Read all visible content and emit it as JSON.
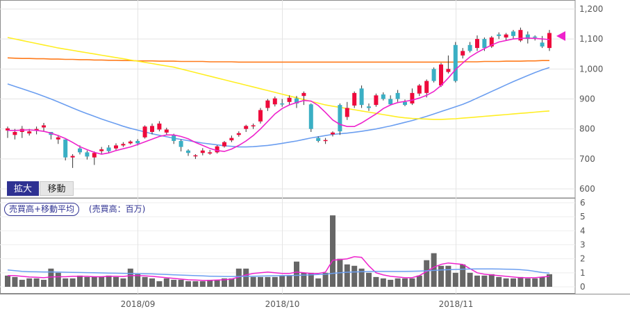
{
  "ui": {
    "zoom_button": "拡大",
    "move_button": "移動",
    "volume_legend": "売買高+移動平均",
    "volume_unit": "(売買高：百万)"
  },
  "colors": {
    "up": "#ee0a3c",
    "down": "#3aafc4",
    "ma_short": "#ee22cc",
    "ma_mid": "#6b9ef0",
    "ma_long": "#ff7a1a",
    "ma_xlong": "#ffee22",
    "volume_bar": "#666666",
    "marker": "#ee22cc"
  },
  "chart_data": [
    {
      "type": "candlestick",
      "title": "",
      "y_ticks": [
        600,
        700,
        800,
        900,
        "1,000",
        "1,100",
        "1,200"
      ],
      "ylim": [
        570,
        1230
      ],
      "x_ticks": [
        "2018/09",
        "2018/10",
        "2018/11"
      ],
      "x_tick_index": [
        18,
        38,
        62
      ],
      "candles": [
        [
          795,
          802,
          808,
          770
        ],
        [
          780,
          790,
          800,
          765
        ],
        [
          790,
          800,
          810,
          770
        ],
        [
          785,
          792,
          800,
          778
        ],
        [
          795,
          800,
          808,
          782
        ],
        [
          805,
          812,
          820,
          790
        ],
        [
          790,
          780,
          790,
          765
        ],
        [
          765,
          772,
          780,
          750
        ],
        [
          765,
          705,
          765,
          695
        ],
        [
          705,
          710,
          716,
          670
        ],
        [
          735,
          722,
          745,
          715
        ],
        [
          722,
          708,
          728,
          698
        ],
        [
          705,
          720,
          725,
          680
        ],
        [
          726,
          732,
          740,
          716
        ],
        [
          738,
          726,
          746,
          720
        ],
        [
          735,
          745,
          752,
          730
        ],
        [
          745,
          750,
          756,
          740
        ],
        [
          752,
          758,
          762,
          748
        ],
        [
          760,
          752,
          766,
          745
        ],
        [
          772,
          808,
          812,
          768
        ],
        [
          790,
          810,
          818,
          782
        ],
        [
          798,
          818,
          826,
          792
        ],
        [
          788,
          798,
          804,
          782
        ],
        [
          780,
          760,
          784,
          750
        ],
        [
          760,
          740,
          765,
          725
        ],
        [
          728,
          720,
          732,
          710
        ],
        [
          712,
          712,
          716,
          700
        ],
        [
          720,
          728,
          736,
          712
        ],
        [
          718,
          722,
          730,
          714
        ],
        [
          722,
          742,
          746,
          718
        ],
        [
          742,
          756,
          760,
          738
        ],
        [
          762,
          770,
          778,
          756
        ],
        [
          780,
          786,
          792,
          774
        ],
        [
          800,
          810,
          814,
          790
        ],
        [
          810,
          812,
          818,
          800
        ],
        [
          825,
          863,
          870,
          818
        ],
        [
          870,
          895,
          900,
          860
        ],
        [
          882,
          902,
          908,
          875
        ],
        [
          885,
          882,
          900,
          874
        ],
        [
          890,
          904,
          912,
          880
        ],
        [
          902,
          885,
          910,
          870
        ],
        [
          910,
          920,
          925,
          880
        ],
        [
          882,
          800,
          885,
          790
        ],
        [
          770,
          760,
          775,
          755
        ],
        [
          760,
          763,
          770,
          750
        ],
        [
          782,
          788,
          792,
          775
        ],
        [
          880,
          792,
          885,
          780
        ],
        [
          840,
          870,
          890,
          830
        ],
        [
          878,
          920,
          925,
          870
        ],
        [
          935,
          880,
          945,
          870
        ],
        [
          875,
          870,
          885,
          860
        ],
        [
          880,
          912,
          918,
          874
        ],
        [
          915,
          900,
          922,
          895
        ],
        [
          900,
          882,
          912,
          878
        ],
        [
          920,
          900,
          930,
          890
        ],
        [
          890,
          880,
          898,
          876
        ],
        [
          885,
          920,
          935,
          880
        ],
        [
          918,
          945,
          950,
          910
        ],
        [
          920,
          960,
          965,
          905
        ],
        [
          1000,
          960,
          1005,
          955
        ],
        [
          945,
          1015,
          1020,
          940
        ],
        [
          990,
          1000,
          1045,
          985
        ],
        [
          1080,
          960,
          1090,
          955
        ],
        [
          1045,
          1060,
          1070,
          1035
        ],
        [
          1080,
          1060,
          1090,
          1055
        ],
        [
          1070,
          1100,
          1112,
          1060
        ],
        [
          1100,
          1070,
          1105,
          1060
        ],
        [
          1075,
          1105,
          1110,
          1070
        ],
        [
          1115,
          1110,
          1122,
          1100
        ],
        [
          1105,
          1115,
          1120,
          1095
        ],
        [
          1125,
          1110,
          1130,
          1100
        ],
        [
          1095,
          1130,
          1138,
          1090
        ],
        [
          1115,
          1100,
          1125,
          1085
        ],
        [
          1108,
          1105,
          1112,
          1095
        ],
        [
          1088,
          1075,
          1110,
          1070
        ],
        [
          1070,
          1120,
          1130,
          1060
        ]
      ],
      "series": [
        {
          "name": "MA short",
          "color_key": "ma_short",
          "values": [
            795,
            795,
            796,
            797,
            795,
            792,
            786,
            778,
            768,
            755,
            741,
            731,
            722,
            716,
            720,
            728,
            734,
            740,
            748,
            757,
            766,
            775,
            780,
            780,
            775,
            767,
            755,
            745,
            735,
            728,
            725,
            733,
            745,
            760,
            778,
            800,
            825,
            850,
            868,
            880,
            888,
            895,
            893,
            878,
            855,
            830,
            815,
            808,
            808,
            820,
            835,
            850,
            868,
            880,
            888,
            892,
            896,
            903,
            912,
            925,
            945,
            970,
            998,
            1020,
            1040,
            1055,
            1068,
            1080,
            1090,
            1095,
            1100,
            1102,
            1103,
            1102,
            1100,
            1098
          ]
        },
        {
          "name": "MA mid",
          "color_key": "ma_mid",
          "values": [
            950,
            942,
            934,
            926,
            918,
            909,
            900,
            890,
            880,
            870,
            860,
            851,
            842,
            833,
            825,
            817,
            809,
            802,
            796,
            790,
            784,
            779,
            774,
            769,
            765,
            761,
            757,
            753,
            750,
            747,
            744,
            742,
            740,
            740,
            741,
            743,
            745,
            748,
            752,
            756,
            760,
            765,
            770,
            774,
            778,
            782,
            784,
            786,
            789,
            792,
            796,
            800,
            805,
            810,
            816,
            822,
            828,
            835,
            842,
            850,
            858,
            866,
            874,
            882,
            892,
            903,
            914,
            925,
            936,
            947,
            958,
            968,
            978,
            988,
            997,
            1005
          ]
        },
        {
          "name": "MA long",
          "color_key": "ma_long",
          "values": [
            1037,
            1036,
            1035,
            1035,
            1034,
            1034,
            1033,
            1033,
            1032,
            1032,
            1031,
            1031,
            1030,
            1030,
            1029,
            1029,
            1028,
            1028,
            1027,
            1027,
            1027,
            1026,
            1026,
            1026,
            1025,
            1025,
            1025,
            1025,
            1024,
            1024,
            1024,
            1024,
            1023,
            1023,
            1023,
            1023,
            1023,
            1023,
            1023,
            1023,
            1023,
            1023,
            1023,
            1023,
            1023,
            1023,
            1023,
            1023,
            1023,
            1023,
            1023,
            1023,
            1023,
            1023,
            1023,
            1023,
            1023,
            1023,
            1023,
            1023,
            1023,
            1023,
            1023,
            1024,
            1024,
            1024,
            1025,
            1025,
            1025,
            1026,
            1026,
            1026,
            1027,
            1027,
            1028,
            1028
          ]
        },
        {
          "name": "MA extra long",
          "color_key": "ma_xlong",
          "values": [
            1105,
            1100,
            1095,
            1090,
            1085,
            1080,
            1075,
            1070,
            1066,
            1062,
            1058,
            1054,
            1050,
            1046,
            1042,
            1038,
            1034,
            1030,
            1026,
            1022,
            1018,
            1014,
            1010,
            1006,
            1000,
            994,
            988,
            982,
            976,
            970,
            964,
            958,
            952,
            946,
            940,
            934,
            928,
            922,
            916,
            910,
            904,
            898,
            892,
            886,
            880,
            876,
            872,
            868,
            864,
            860,
            856,
            852,
            848,
            844,
            840,
            837,
            835,
            834,
            833,
            832,
            832,
            833,
            834,
            836,
            838,
            840,
            842,
            844,
            846,
            848,
            850,
            852,
            854,
            856,
            858,
            860
          ]
        }
      ],
      "marker": {
        "value": 1110,
        "shape": "left-triangle"
      }
    },
    {
      "type": "bar",
      "title": "売買高+移動平均",
      "ylabel": "売買高：百万",
      "y_ticks": [
        0,
        1,
        2,
        3,
        4,
        5,
        6
      ],
      "ylim": [
        0,
        6
      ],
      "values": [
        0.8,
        0.7,
        0.5,
        0.6,
        0.6,
        0.5,
        1.3,
        1.0,
        0.6,
        0.6,
        0.8,
        0.7,
        0.7,
        0.7,
        0.8,
        0.7,
        0.6,
        1.3,
        0.9,
        0.7,
        0.6,
        0.4,
        0.6,
        0.5,
        0.5,
        0.4,
        0.4,
        0.4,
        0.5,
        0.5,
        0.6,
        0.6,
        1.3,
        1.3,
        0.7,
        0.7,
        0.7,
        0.7,
        0.8,
        0.8,
        1.8,
        1.0,
        1.0,
        0.6,
        1.0,
        5.1,
        2.0,
        1.6,
        1.5,
        1.3,
        1.0,
        0.7,
        0.6,
        0.5,
        0.6,
        0.6,
        0.6,
        0.8,
        1.9,
        2.4,
        1.5,
        1.5,
        1.0,
        1.6,
        1.0,
        0.8,
        0.8,
        0.9,
        0.7,
        0.6,
        0.6,
        0.7,
        0.6,
        0.6,
        0.7,
        0.9
      ],
      "series": [
        {
          "name": "Volume MA short",
          "color_key": "ma_short",
          "values": [
            0.8,
            0.8,
            0.75,
            0.7,
            0.68,
            0.65,
            0.7,
            0.72,
            0.72,
            0.75,
            0.75,
            0.75,
            0.72,
            0.72,
            0.75,
            0.75,
            0.74,
            0.8,
            0.8,
            0.78,
            0.75,
            0.7,
            0.65,
            0.6,
            0.55,
            0.5,
            0.48,
            0.46,
            0.46,
            0.48,
            0.5,
            0.55,
            0.7,
            0.85,
            0.95,
            1.0,
            1.05,
            1.0,
            0.95,
            0.95,
            1.05,
            1.0,
            0.95,
            0.95,
            1.05,
            1.9,
            1.95,
            2.0,
            2.15,
            2.1,
            1.5,
            1.0,
            0.85,
            0.75,
            0.7,
            0.65,
            0.65,
            0.8,
            1.1,
            1.4,
            1.6,
            1.7,
            1.65,
            1.6,
            1.3,
            1.0,
            0.9,
            0.85,
            0.8,
            0.75,
            0.7,
            0.65,
            0.65,
            0.65,
            0.7,
            0.75
          ]
        },
        {
          "name": "Volume MA long",
          "color_key": "ma_mid",
          "values": [
            1.2,
            1.15,
            1.1,
            1.08,
            1.07,
            1.06,
            1.06,
            1.05,
            1.04,
            1.03,
            1.02,
            1.01,
            1.0,
            0.99,
            0.98,
            0.97,
            0.96,
            0.95,
            0.94,
            0.93,
            0.92,
            0.9,
            0.88,
            0.86,
            0.84,
            0.82,
            0.8,
            0.78,
            0.76,
            0.75,
            0.74,
            0.74,
            0.74,
            0.75,
            0.76,
            0.77,
            0.78,
            0.79,
            0.8,
            0.81,
            0.82,
            0.84,
            0.86,
            0.88,
            0.9,
            0.96,
            1.0,
            1.04,
            1.06,
            1.08,
            1.09,
            1.1,
            1.1,
            1.1,
            1.1,
            1.1,
            1.11,
            1.12,
            1.14,
            1.17,
            1.2,
            1.22,
            1.24,
            1.26,
            1.27,
            1.28,
            1.28,
            1.28,
            1.27,
            1.26,
            1.25,
            1.22,
            1.18,
            1.1,
            1.02,
            0.98
          ]
        }
      ]
    }
  ]
}
